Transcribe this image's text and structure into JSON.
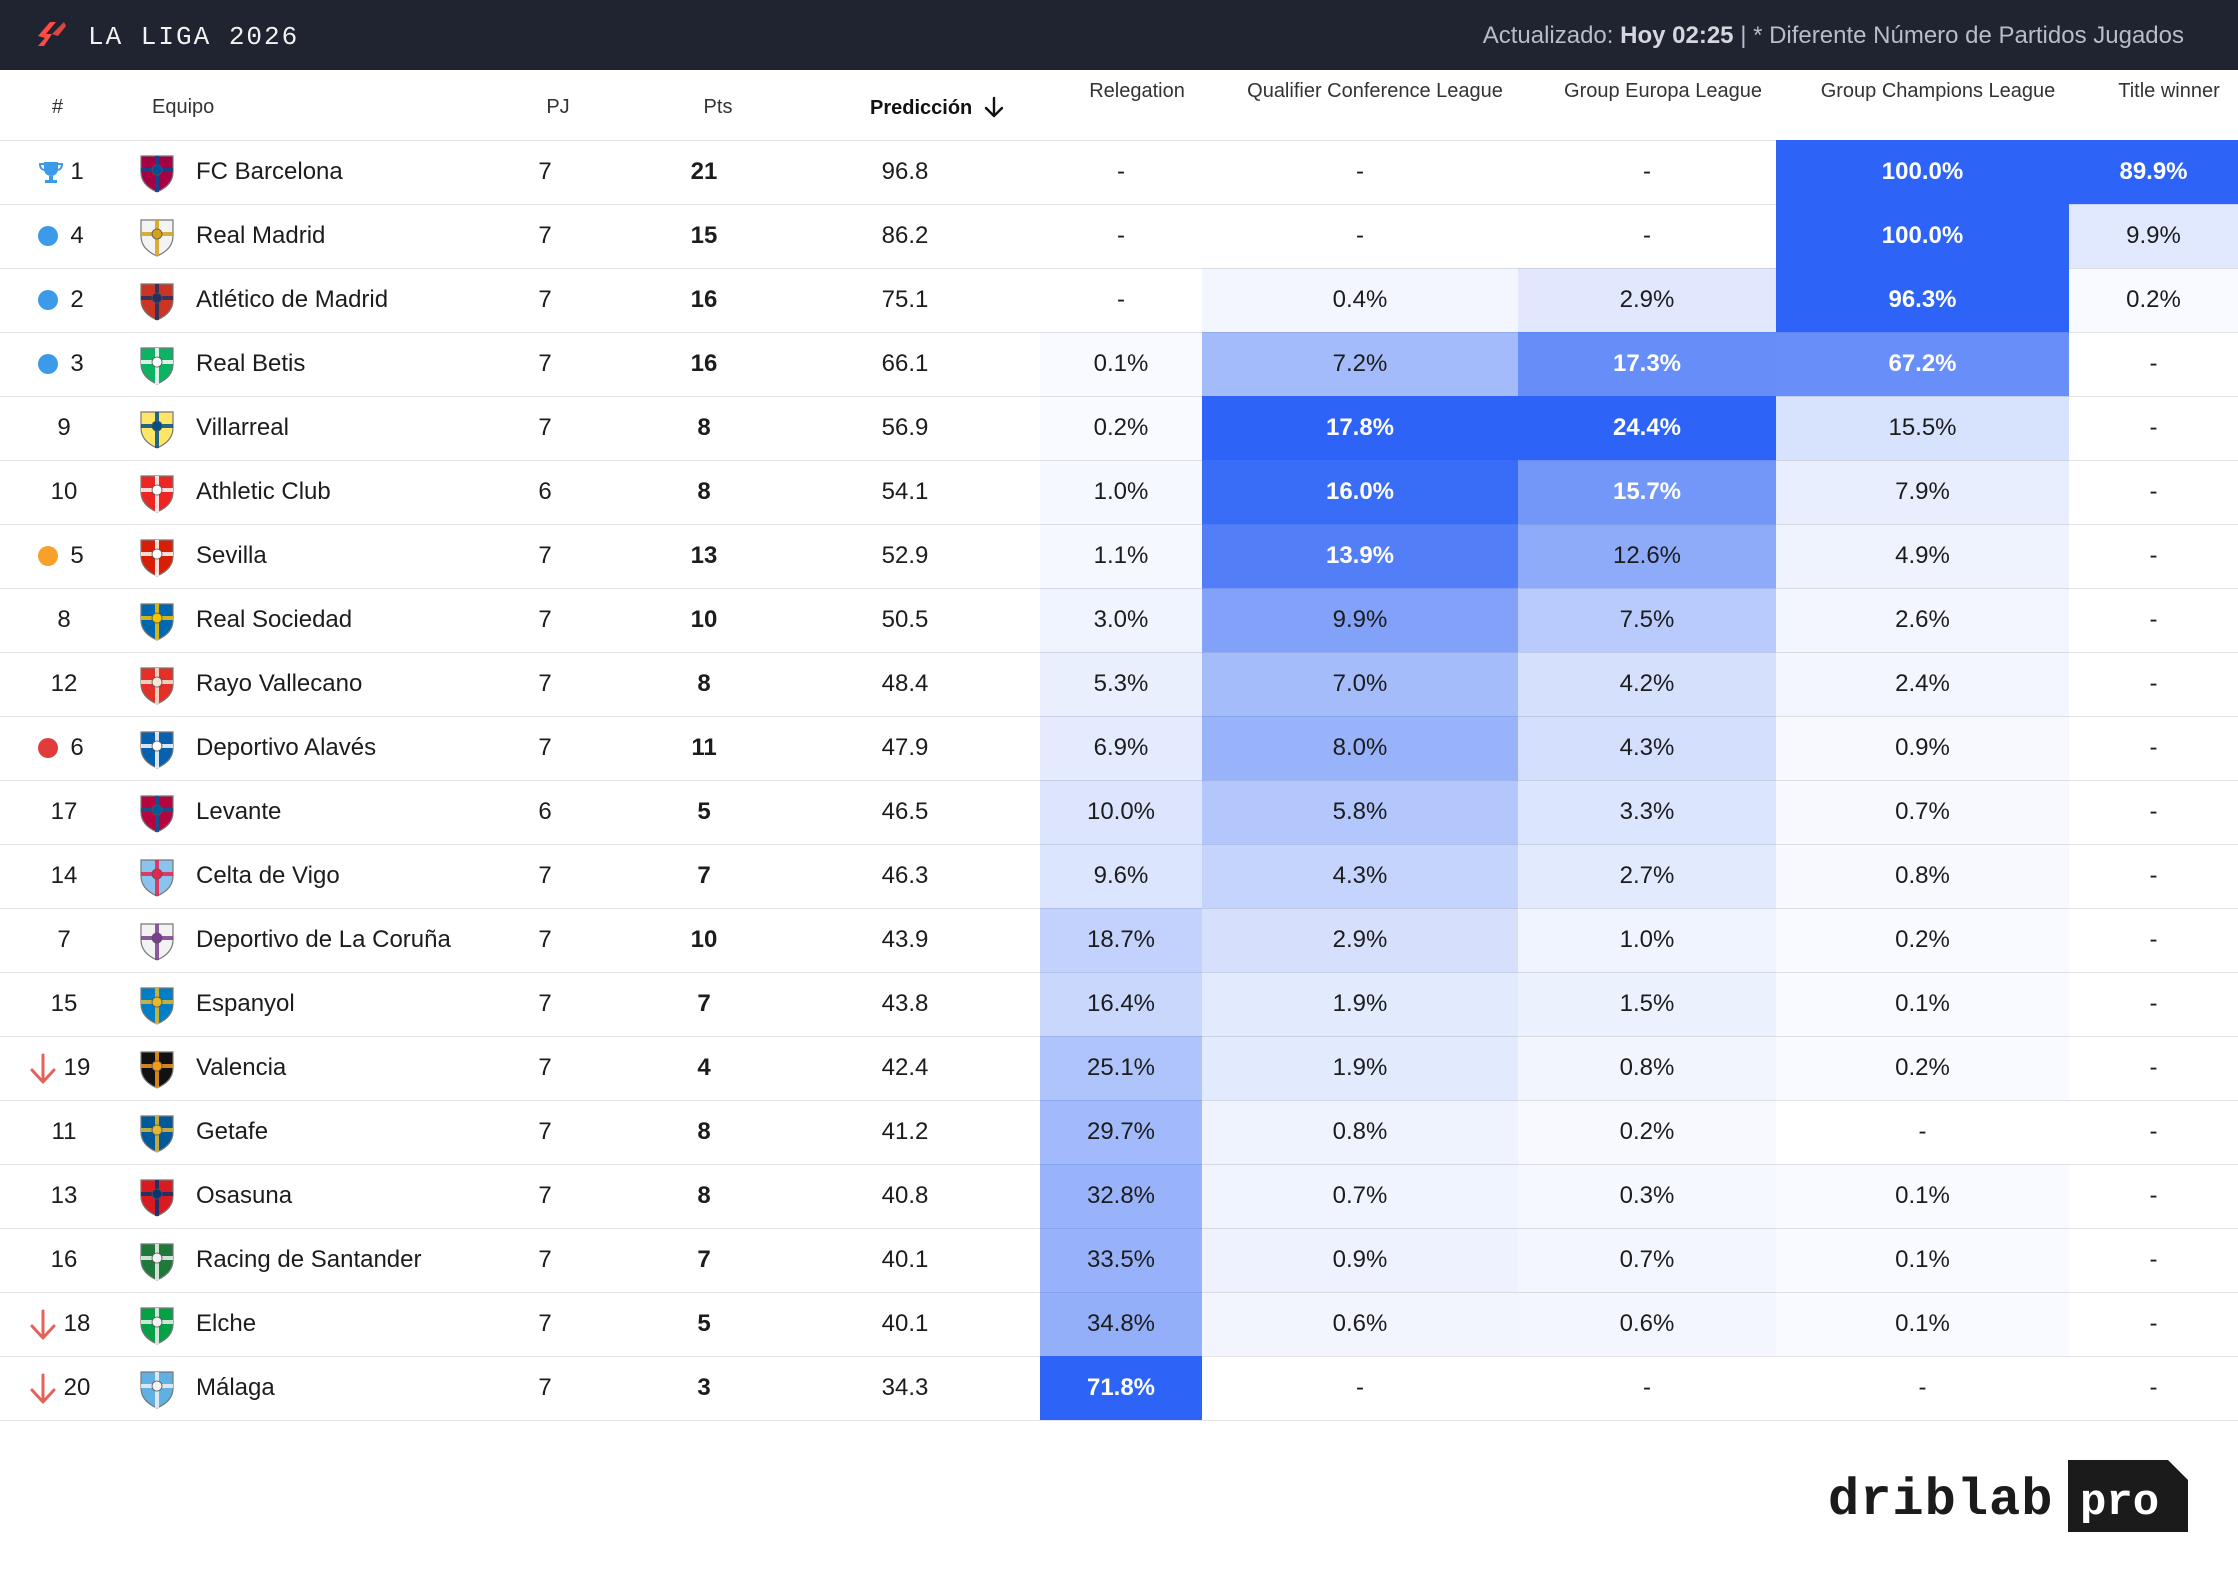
{
  "header": {
    "title": "LA LIGA 2026",
    "updated_label": "Actualizado:",
    "updated_value": "Hoy 02:25",
    "updated_note": "| * Diferente Número de Partidos Jugados"
  },
  "columns": {
    "rank": "#",
    "team": "Equipo",
    "played": "PJ",
    "points": "Pts",
    "prediction": "Predicción",
    "relegation": "Relegation",
    "conference": "Qualifier Conference League",
    "europa": "Group Europa League",
    "champions": "Group Champions League",
    "title": "Title winner"
  },
  "rows": [
    {
      "rank": "1",
      "marker": "trophy",
      "team": "FC Barcelona",
      "pj": "7",
      "pts": "21",
      "pred": "96.8",
      "rel": "-",
      "conf": "-",
      "eur": "-",
      "ucl": "100.0%",
      "title": "89.9%",
      "crest": [
        "#a50044",
        "#004d98"
      ]
    },
    {
      "rank": "4",
      "marker": "blue",
      "team": "Real Madrid",
      "pj": "7",
      "pts": "15",
      "pred": "86.2",
      "rel": "-",
      "conf": "-",
      "eur": "-",
      "ucl": "100.0%",
      "title": "9.9%",
      "crest": [
        "#f3f3f3",
        "#d4a21c"
      ]
    },
    {
      "rank": "2",
      "marker": "blue",
      "team": "Atlético de Madrid",
      "pj": "7",
      "pts": "16",
      "pred": "75.1",
      "rel": "-",
      "conf": "0.4%",
      "eur": "2.9%",
      "ucl": "96.3%",
      "title": "0.2%",
      "crest": [
        "#cb3524",
        "#262f61"
      ]
    },
    {
      "rank": "3",
      "marker": "blue",
      "team": "Real Betis",
      "pj": "7",
      "pts": "16",
      "pred": "66.1",
      "rel": "0.1%",
      "conf": "7.2%",
      "eur": "17.3%",
      "ucl": "67.2%",
      "title": "-",
      "crest": [
        "#0bb363",
        "#ffffff"
      ]
    },
    {
      "rank": "9",
      "marker": "",
      "team": "Villarreal",
      "pj": "7",
      "pts": "8",
      "pred": "56.9",
      "rel": "0.2%",
      "conf": "17.8%",
      "eur": "24.4%",
      "ucl": "15.5%",
      "title": "-",
      "crest": [
        "#ffe667",
        "#005187"
      ]
    },
    {
      "rank": "10",
      "marker": "",
      "team": "Athletic Club",
      "pj": "6",
      "pts": "8",
      "pred": "54.1",
      "rel": "1.0%",
      "conf": "16.0%",
      "eur": "15.7%",
      "ucl": "7.9%",
      "title": "-",
      "crest": [
        "#ee2523",
        "#ffffff"
      ]
    },
    {
      "rank": "5",
      "marker": "orange",
      "team": "Sevilla",
      "pj": "7",
      "pts": "13",
      "pred": "52.9",
      "rel": "1.1%",
      "conf": "13.9%",
      "eur": "12.6%",
      "ucl": "4.9%",
      "title": "-",
      "crest": [
        "#d81e05",
        "#ffffff"
      ]
    },
    {
      "rank": "8",
      "marker": "",
      "team": "Real Sociedad",
      "pj": "7",
      "pts": "10",
      "pred": "50.5",
      "rel": "3.0%",
      "conf": "9.9%",
      "eur": "7.5%",
      "ucl": "2.6%",
      "title": "-",
      "crest": [
        "#0067b1",
        "#f5c400"
      ]
    },
    {
      "rank": "12",
      "marker": "",
      "team": "Rayo Vallecano",
      "pj": "7",
      "pts": "8",
      "pred": "48.4",
      "rel": "5.3%",
      "conf": "7.0%",
      "eur": "4.2%",
      "ucl": "2.4%",
      "title": "-",
      "crest": [
        "#e53027",
        "#f3e9d6"
      ]
    },
    {
      "rank": "6",
      "marker": "red",
      "team": "Deportivo Alavés",
      "pj": "7",
      "pts": "11",
      "pred": "47.9",
      "rel": "6.9%",
      "conf": "8.0%",
      "eur": "4.3%",
      "ucl": "0.9%",
      "title": "-",
      "crest": [
        "#0761af",
        "#ffffff"
      ]
    },
    {
      "rank": "17",
      "marker": "",
      "team": "Levante",
      "pj": "6",
      "pts": "5",
      "pred": "46.5",
      "rel": "10.0%",
      "conf": "5.8%",
      "eur": "3.3%",
      "ucl": "0.7%",
      "title": "-",
      "crest": [
        "#b4053f",
        "#005a9c"
      ]
    },
    {
      "rank": "14",
      "marker": "",
      "team": "Celta de Vigo",
      "pj": "7",
      "pts": "7",
      "pred": "46.3",
      "rel": "9.6%",
      "conf": "4.3%",
      "eur": "2.7%",
      "ucl": "0.8%",
      "title": "-",
      "crest": [
        "#8ac3ee",
        "#e5254e"
      ]
    },
    {
      "rank": "7",
      "marker": "",
      "team": "Deportivo de La Coruña",
      "pj": "7",
      "pts": "10",
      "pred": "43.9",
      "rel": "18.7%",
      "conf": "2.9%",
      "eur": "1.0%",
      "ucl": "0.2%",
      "title": "-",
      "crest": [
        "#f2f2f2",
        "#7a3d8f"
      ]
    },
    {
      "rank": "15",
      "marker": "",
      "team": "Espanyol",
      "pj": "7",
      "pts": "7",
      "pred": "43.8",
      "rel": "16.4%",
      "conf": "1.9%",
      "eur": "1.5%",
      "ucl": "0.1%",
      "title": "-",
      "crest": [
        "#007fc8",
        "#e5b92b"
      ]
    },
    {
      "rank": "19",
      "marker": "down",
      "team": "Valencia",
      "pj": "7",
      "pts": "4",
      "pred": "42.4",
      "rel": "25.1%",
      "conf": "1.9%",
      "eur": "0.8%",
      "ucl": "0.2%",
      "title": "-",
      "crest": [
        "#111111",
        "#f39a1e"
      ]
    },
    {
      "rank": "11",
      "marker": "",
      "team": "Getafe",
      "pj": "7",
      "pts": "8",
      "pred": "41.2",
      "rel": "29.7%",
      "conf": "0.8%",
      "eur": "0.2%",
      "ucl": "-",
      "title": "-",
      "crest": [
        "#005999",
        "#e2b833"
      ]
    },
    {
      "rank": "13",
      "marker": "",
      "team": "Osasuna",
      "pj": "7",
      "pts": "8",
      "pred": "40.8",
      "rel": "32.8%",
      "conf": "0.7%",
      "eur": "0.3%",
      "ucl": "0.1%",
      "title": "-",
      "crest": [
        "#d91a21",
        "#0a346f"
      ]
    },
    {
      "rank": "16",
      "marker": "",
      "team": "Racing de Santander",
      "pj": "7",
      "pts": "7",
      "pred": "40.1",
      "rel": "33.5%",
      "conf": "0.9%",
      "eur": "0.7%",
      "ucl": "0.1%",
      "title": "-",
      "crest": [
        "#1e7a3a",
        "#f2f2f2"
      ]
    },
    {
      "rank": "18",
      "marker": "down",
      "team": "Elche",
      "pj": "7",
      "pts": "5",
      "pred": "40.1",
      "rel": "34.8%",
      "conf": "0.6%",
      "eur": "0.6%",
      "ucl": "0.1%",
      "title": "-",
      "crest": [
        "#05a146",
        "#f2f2f2"
      ]
    },
    {
      "rank": "20",
      "marker": "down",
      "team": "Málaga",
      "pj": "7",
      "pts": "3",
      "pred": "34.3",
      "rel": "71.8%",
      "conf": "-",
      "eur": "-",
      "ucl": "-",
      "title": "-",
      "crest": [
        "#60b0e3",
        "#f2f2f2"
      ]
    }
  ],
  "colors": {
    "heat_max": "#2d63f6",
    "marker_blue": "#3b9be8",
    "marker_orange": "#f7a12a",
    "marker_red": "#e03c3c",
    "arrow_red": "#e8605b",
    "topbar": "#1f2430",
    "laliga": "#ff4b44"
  },
  "brand": {
    "name": "driblab",
    "tag": "pro"
  }
}
